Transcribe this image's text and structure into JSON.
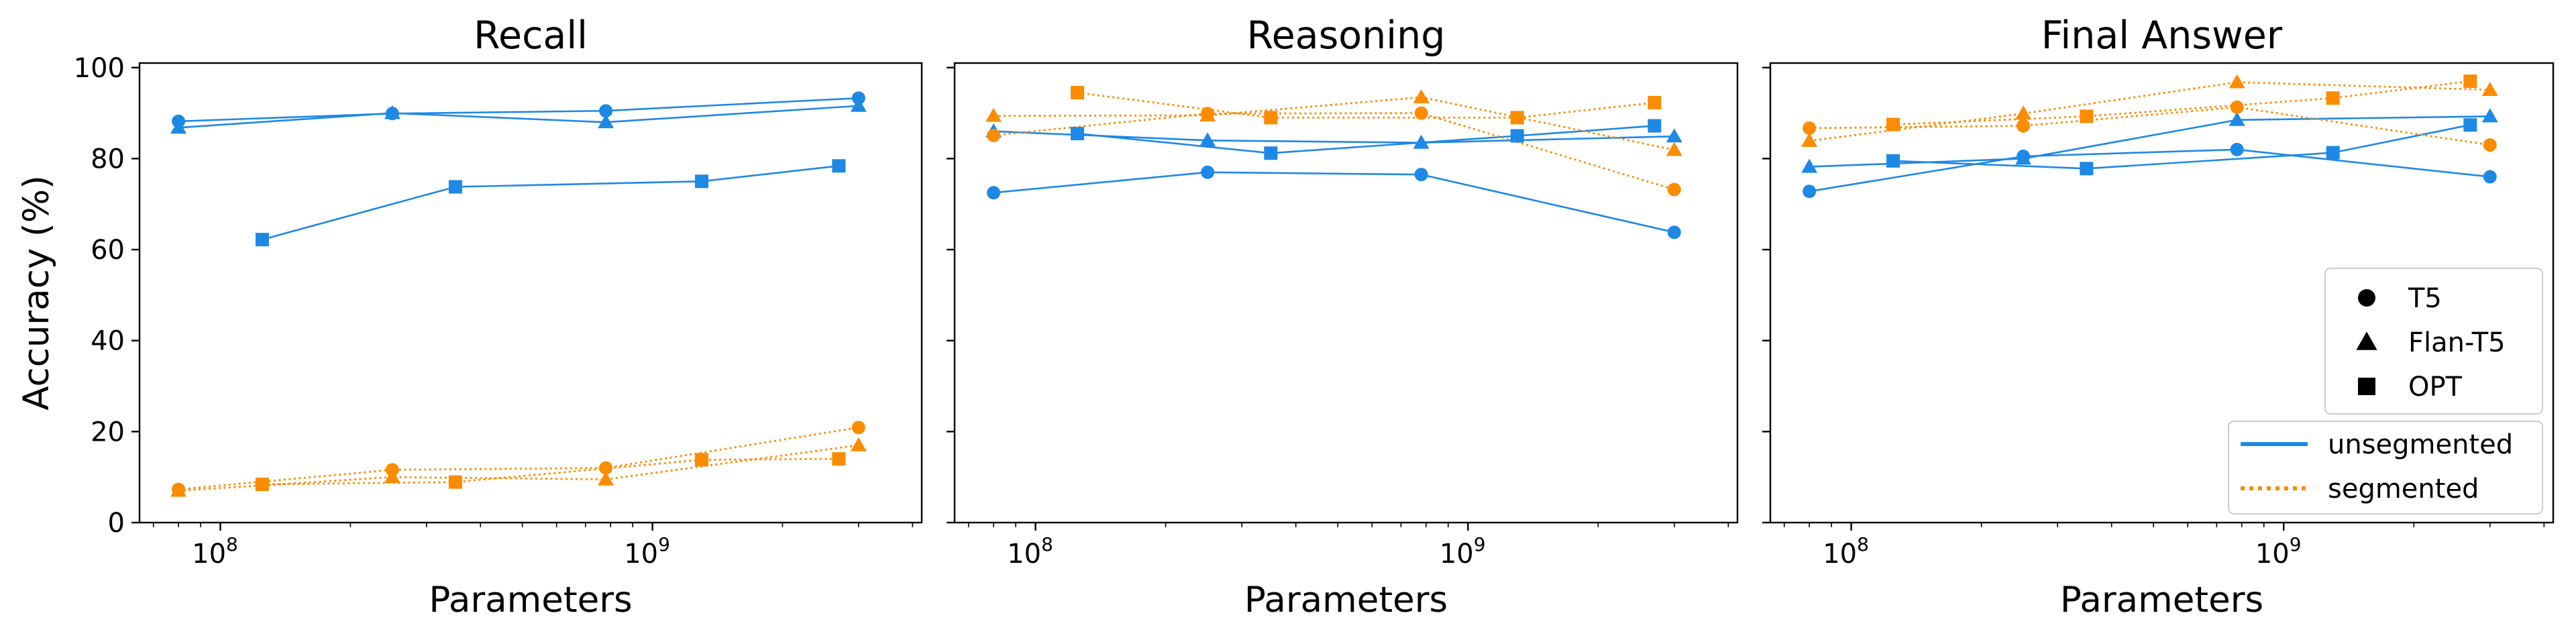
{
  "chart_data": {
    "type": "line",
    "xscale": "log",
    "xlabel": "Parameters",
    "ylabel": "Accuracy (%)",
    "xlim": [
      65000000,
      4200000000
    ],
    "ylim": [
      0,
      101
    ],
    "yticks": [
      0,
      20,
      40,
      60,
      80,
      100
    ],
    "xticks": [
      {
        "value": 100000000,
        "base": "10",
        "exp": "8"
      },
      {
        "value": 1000000000,
        "base": "10",
        "exp": "9"
      }
    ],
    "grid": false,
    "colors": {
      "unsegmented": "#1e88e5",
      "segmented": "#fb8c00"
    },
    "legend": {
      "placement": "bottom-right",
      "models": [
        {
          "label": "T5",
          "marker": "circle"
        },
        {
          "label": "Flan-T5",
          "marker": "triangle"
        },
        {
          "label": "OPT",
          "marker": "square"
        }
      ],
      "styles": [
        {
          "label": "unsegmented",
          "style": "solid",
          "key": "unsegmented"
        },
        {
          "label": "segmented",
          "style": "dotted",
          "key": "segmented"
        }
      ]
    },
    "panels": [
      {
        "title": "Recall",
        "series": [
          {
            "model": "T5",
            "marker": "circle",
            "style": "unsegmented",
            "x": [
              80000000,
              250000000,
              780000000,
              3000000000
            ],
            "y": [
              88.2,
              89.9,
              90.5,
              93.3
            ]
          },
          {
            "model": "Flan-T5",
            "marker": "triangle",
            "style": "unsegmented",
            "x": [
              80000000,
              250000000,
              780000000,
              3000000000
            ],
            "y": [
              86.8,
              90.0,
              88.0,
              91.6
            ]
          },
          {
            "model": "OPT",
            "marker": "square",
            "style": "unsegmented",
            "x": [
              125000000,
              350000000,
              1300000000,
              2700000000
            ],
            "y": [
              62.2,
              73.8,
              75.0,
              78.4
            ]
          },
          {
            "model": "T5",
            "marker": "circle",
            "style": "segmented",
            "x": [
              80000000,
              250000000,
              780000000,
              3000000000
            ],
            "y": [
              7.3,
              11.6,
              12.0,
              20.9
            ]
          },
          {
            "model": "Flan-T5",
            "marker": "triangle",
            "style": "segmented",
            "x": [
              80000000,
              250000000,
              780000000,
              3000000000
            ],
            "y": [
              7.0,
              10.0,
              9.5,
              17.0
            ]
          },
          {
            "model": "OPT",
            "marker": "square",
            "style": "segmented",
            "x": [
              125000000,
              350000000,
              1300000000,
              2700000000
            ],
            "y": [
              8.4,
              8.9,
              13.8,
              14.0
            ]
          }
        ]
      },
      {
        "title": "Reasoning",
        "series": [
          {
            "model": "T5",
            "marker": "circle",
            "style": "unsegmented",
            "x": [
              80000000,
              250000000,
              780000000,
              3000000000
            ],
            "y": [
              72.5,
              77.0,
              76.5,
              63.8
            ]
          },
          {
            "model": "Flan-T5",
            "marker": "triangle",
            "style": "unsegmented",
            "x": [
              80000000,
              250000000,
              780000000,
              3000000000
            ],
            "y": [
              86.0,
              84.0,
              83.5,
              84.9
            ]
          },
          {
            "model": "OPT",
            "marker": "square",
            "style": "unsegmented",
            "x": [
              125000000,
              350000000,
              1300000000,
              2700000000
            ],
            "y": [
              85.5,
              81.2,
              85.0,
              87.2
            ]
          },
          {
            "model": "T5",
            "marker": "circle",
            "style": "segmented",
            "x": [
              80000000,
              250000000,
              780000000,
              3000000000
            ],
            "y": [
              85.1,
              89.9,
              90.0,
              73.2
            ]
          },
          {
            "model": "Flan-T5",
            "marker": "triangle",
            "style": "segmented",
            "x": [
              80000000,
              250000000,
              780000000,
              3000000000
            ],
            "y": [
              89.4,
              89.5,
              93.5,
              81.9
            ]
          },
          {
            "model": "OPT",
            "marker": "square",
            "style": "segmented",
            "x": [
              125000000,
              350000000,
              1300000000,
              2700000000
            ],
            "y": [
              94.5,
              89.0,
              89.0,
              92.3
            ]
          }
        ]
      },
      {
        "title": "Final Answer",
        "series": [
          {
            "model": "T5",
            "marker": "circle",
            "style": "unsegmented",
            "x": [
              80000000,
              250000000,
              780000000,
              3000000000
            ],
            "y": [
              72.8,
              80.5,
              82.0,
              76.0
            ]
          },
          {
            "model": "Flan-T5",
            "marker": "triangle",
            "style": "unsegmented",
            "x": [
              80000000,
              250000000,
              780000000,
              3000000000
            ],
            "y": [
              78.2,
              80.0,
              88.5,
              89.3
            ]
          },
          {
            "model": "OPT",
            "marker": "square",
            "style": "unsegmented",
            "x": [
              125000000,
              350000000,
              1300000000,
              2700000000
            ],
            "y": [
              79.5,
              77.8,
              81.3,
              87.4
            ]
          },
          {
            "model": "T5",
            "marker": "circle",
            "style": "segmented",
            "x": [
              80000000,
              250000000,
              780000000,
              3000000000
            ],
            "y": [
              86.7,
              87.2,
              91.3,
              83.0
            ]
          },
          {
            "model": "Flan-T5",
            "marker": "triangle",
            "style": "segmented",
            "x": [
              80000000,
              250000000,
              780000000,
              3000000000
            ],
            "y": [
              83.9,
              89.9,
              96.8,
              95.1
            ]
          },
          {
            "model": "OPT",
            "marker": "square",
            "style": "segmented",
            "x": [
              125000000,
              350000000,
              1300000000,
              2700000000
            ],
            "y": [
              87.5,
              89.3,
              93.3,
              97.0
            ]
          }
        ]
      }
    ]
  }
}
